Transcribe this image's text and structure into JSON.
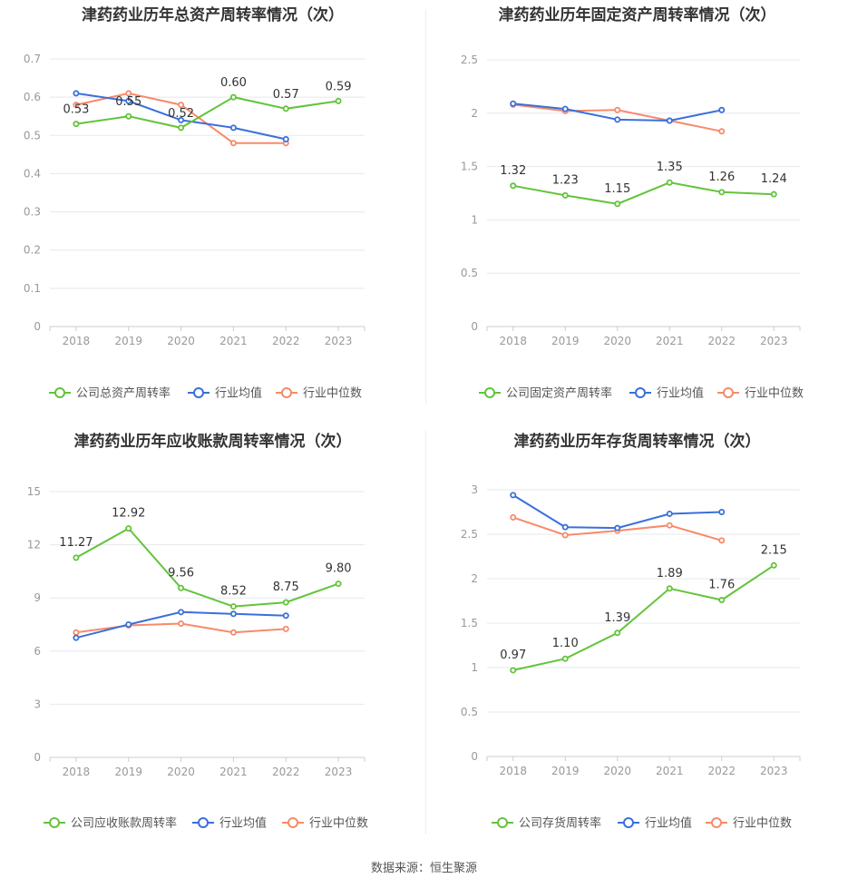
{
  "footer": {
    "source": "数据来源：恒生聚源"
  },
  "colors": {
    "company": "#62c43a",
    "avg": "#3a6fdb",
    "median": "#f78a6a"
  },
  "chart_data": [
    {
      "type": "line",
      "title": "津药药业历年总资产周转率情况（次）",
      "categories": [
        "2018",
        "2019",
        "2020",
        "2021",
        "2022",
        "2023"
      ],
      "ylim": [
        0,
        0.7
      ],
      "yticks": [
        "0",
        "0.1",
        "0.2",
        "0.3",
        "0.4",
        "0.5",
        "0.6",
        "0.7"
      ],
      "grid": true,
      "legend": "bottom",
      "series": [
        {
          "name": "公司总资产周转率",
          "key": "company",
          "values": [
            0.53,
            0.55,
            0.52,
            0.6,
            0.57,
            0.59
          ],
          "labels": [
            "0.53",
            "0.55",
            "0.52",
            "0.60",
            "0.57",
            "0.59"
          ]
        },
        {
          "name": "行业均值",
          "key": "avg",
          "values": [
            0.61,
            0.59,
            0.54,
            0.52,
            0.49,
            null
          ]
        },
        {
          "name": "行业中位数",
          "key": "median",
          "values": [
            0.58,
            0.61,
            0.58,
            0.48,
            0.48,
            null
          ]
        }
      ]
    },
    {
      "type": "line",
      "title": "津药药业历年固定资产周转率情况（次）",
      "categories": [
        "2018",
        "2019",
        "2020",
        "2021",
        "2022",
        "2023"
      ],
      "ylim": [
        0,
        2.5
      ],
      "yticks": [
        "0",
        "0.5",
        "1",
        "1.5",
        "2",
        "2.5"
      ],
      "grid": true,
      "legend": "bottom",
      "series": [
        {
          "name": "公司固定资产周转率",
          "key": "company",
          "values": [
            1.32,
            1.23,
            1.15,
            1.35,
            1.26,
            1.24
          ],
          "labels": [
            "1.32",
            "1.23",
            "1.15",
            "1.35",
            "1.26",
            "1.24"
          ]
        },
        {
          "name": "行业均值",
          "key": "avg",
          "values": [
            2.09,
            2.04,
            1.94,
            1.93,
            2.03,
            null
          ]
        },
        {
          "name": "行业中位数",
          "key": "median",
          "values": [
            2.08,
            2.02,
            2.03,
            1.93,
            1.83,
            null
          ]
        }
      ]
    },
    {
      "type": "line",
      "title": "津药药业历年应收账款周转率情况（次）",
      "categories": [
        "2018",
        "2019",
        "2020",
        "2021",
        "2022",
        "2023"
      ],
      "ylim": [
        0,
        15
      ],
      "yticks": [
        "0",
        "3",
        "6",
        "9",
        "12",
        "15"
      ],
      "grid": true,
      "legend": "bottom",
      "series": [
        {
          "name": "公司应收账款周转率",
          "key": "company",
          "values": [
            11.27,
            12.92,
            9.56,
            8.52,
            8.75,
            9.8
          ],
          "labels": [
            "11.27",
            "12.92",
            "9.56",
            "8.52",
            "8.75",
            "9.80"
          ]
        },
        {
          "name": "行业均值",
          "key": "avg",
          "values": [
            6.75,
            7.5,
            8.2,
            8.1,
            8.0,
            null
          ]
        },
        {
          "name": "行业中位数",
          "key": "median",
          "values": [
            7.05,
            7.45,
            7.55,
            7.05,
            7.25,
            null
          ]
        }
      ]
    },
    {
      "type": "line",
      "title": "津药药业历年存货周转率情况（次）",
      "categories": [
        "2018",
        "2019",
        "2020",
        "2021",
        "2022",
        "2023"
      ],
      "ylim": [
        0,
        3
      ],
      "yticks": [
        "0",
        "0.5",
        "1",
        "1.5",
        "2",
        "2.5",
        "3"
      ],
      "grid": true,
      "legend": "bottom",
      "series": [
        {
          "name": "公司存货周转率",
          "key": "company",
          "values": [
            0.97,
            1.1,
            1.39,
            1.89,
            1.76,
            2.15
          ],
          "labels": [
            "0.97",
            "1.10",
            "1.39",
            "1.89",
            "1.76",
            "2.15"
          ]
        },
        {
          "name": "行业均值",
          "key": "avg",
          "values": [
            2.94,
            2.58,
            2.57,
            2.73,
            2.75,
            null
          ]
        },
        {
          "name": "行业中位数",
          "key": "median",
          "values": [
            2.69,
            2.49,
            2.54,
            2.6,
            2.43,
            null
          ]
        }
      ]
    }
  ]
}
